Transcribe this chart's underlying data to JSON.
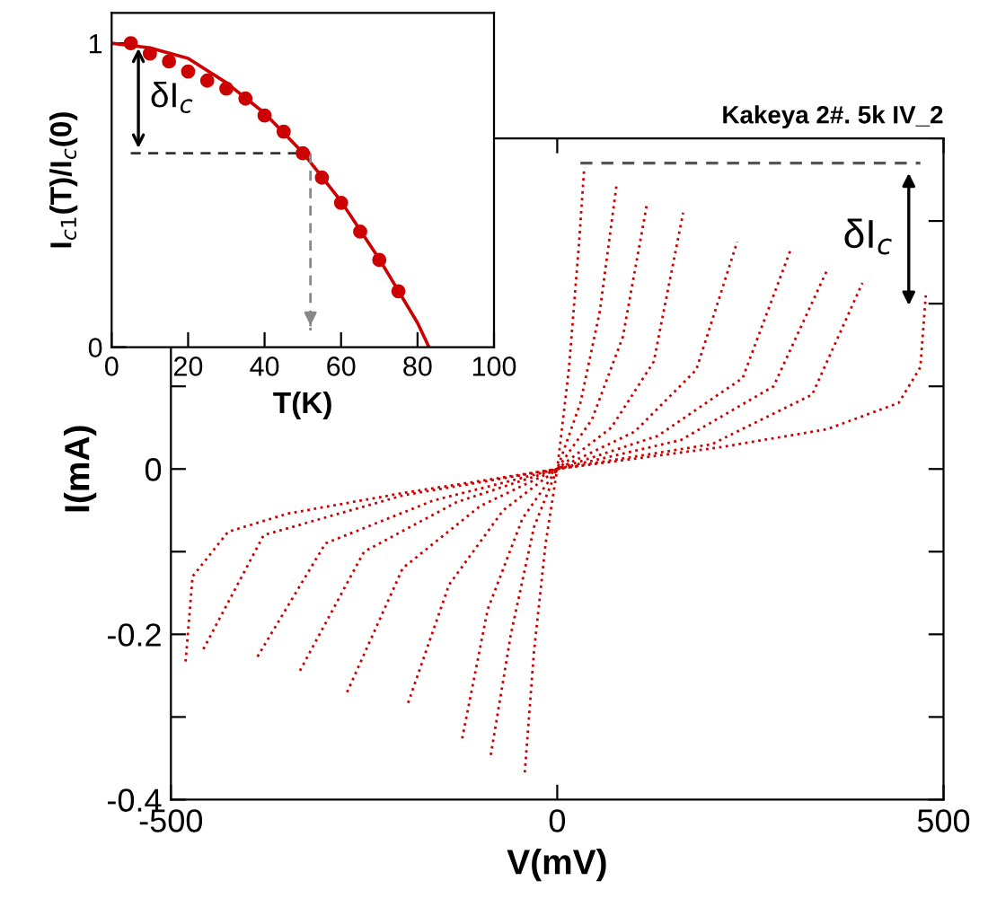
{
  "chart_data": [
    {
      "type": "scatter",
      "xlabel": "T(K)",
      "ylabel": "I$_{c1}$(T)/I$_{c}$(0)",
      "xlim": [
        0,
        100
      ],
      "xticks": [
        0,
        20,
        40,
        60,
        80,
        100
      ],
      "ylim": [
        0,
        1.1
      ],
      "yticks": [
        0,
        1
      ],
      "marker": "circle",
      "series": [
        {
          "type": "scatter",
          "color": "#cc0000",
          "x": [
            5,
            10,
            15,
            20,
            25,
            30,
            35,
            40,
            45,
            50,
            55,
            60,
            65,
            70,
            75
          ],
          "values": [
            1.0,
            0.966,
            0.94,
            0.907,
            0.877,
            0.851,
            0.818,
            0.762,
            0.709,
            0.638,
            0.558,
            0.475,
            0.38,
            0.287,
            0.184
          ]
        },
        {
          "type": "line",
          "color": "#cc0000",
          "line_style": "solid",
          "marker": "none",
          "x": [
            0,
            10,
            20,
            30,
            40,
            50,
            60,
            70,
            80,
            83
          ],
          "values": [
            1.0,
            0.985,
            0.95,
            0.87,
            0.77,
            0.64,
            0.48,
            0.29,
            0.08,
            0
          ]
        }
      ],
      "ref_lines": [
        {
          "axis": "y",
          "value": 0.638,
          "line_style": "dashed",
          "color": "#333333"
        },
        {
          "axis": "x",
          "value": 52,
          "line_style": "dashed",
          "color": "#888888"
        }
      ],
      "annotations": [
        {
          "text": "δI$_{c}$",
          "x": 7,
          "y": 0.638
        }
      ]
    },
    {
      "type": "line",
      "title": "Kakeya 2#. 5k IV_2",
      "xlabel": "V(mV)",
      "ylabel": "I(mA)",
      "xlim": [
        -500,
        500
      ],
      "xticks": [
        -500,
        0,
        500
      ],
      "ylim": [
        -0.4,
        0.4
      ],
      "yticks": [
        {
          "value": -0.4,
          "label": "-0.4"
        },
        {
          "value": -0.3,
          "label": null
        },
        {
          "value": -0.2,
          "label": "-0.2"
        },
        {
          "value": -0.1,
          "label": null
        },
        0,
        {
          "value": 0.1,
          "label": null
        },
        {
          "value": 0.2,
          "label": null
        },
        {
          "value": 0.3,
          "label": null
        },
        {
          "value": 0.4,
          "label": null
        }
      ],
      "line_style": "dotted",
      "marker": "none",
      "series": [
        {
          "color": "#cc0000",
          "x": [
            -42,
            -30,
            -15,
            0,
            15,
            28,
            35
          ],
          "values": [
            -0.367,
            -0.22,
            -0.09,
            0,
            0.12,
            0.27,
            0.365
          ]
        },
        {
          "color": "#cc0000",
          "x": [
            -86,
            -60,
            -30,
            0,
            30,
            55,
            77
          ],
          "values": [
            -0.346,
            -0.2,
            -0.07,
            0,
            0.08,
            0.19,
            0.345
          ]
        },
        {
          "color": "#cc0000",
          "x": [
            -123,
            -90,
            -45,
            0,
            45,
            85,
            116
          ],
          "values": [
            -0.326,
            -0.17,
            -0.06,
            0,
            0.06,
            0.16,
            0.32
          ]
        },
        {
          "color": "#cc0000",
          "x": [
            -193,
            -140,
            -70,
            0,
            70,
            125,
            163
          ],
          "values": [
            -0.283,
            -0.14,
            -0.05,
            0,
            0.05,
            0.13,
            0.31
          ]
        },
        {
          "color": "#cc0000",
          "x": [
            -272,
            -200,
            -100,
            0,
            100,
            180,
            233
          ],
          "values": [
            -0.27,
            -0.12,
            -0.045,
            0,
            0.045,
            0.12,
            0.275
          ]
        },
        {
          "color": "#cc0000",
          "x": [
            -333,
            -250,
            -130,
            0,
            130,
            240,
            302
          ],
          "values": [
            -0.244,
            -0.1,
            -0.04,
            0,
            0.04,
            0.11,
            0.265
          ]
        },
        {
          "color": "#cc0000",
          "x": [
            -388,
            -300,
            -160,
            0,
            160,
            280,
            349
          ],
          "values": [
            -0.227,
            -0.09,
            -0.038,
            0,
            0.035,
            0.1,
            0.24
          ]
        },
        {
          "color": "#cc0000",
          "x": [
            -458,
            -380,
            -200,
            0,
            200,
            330,
            395
          ],
          "values": [
            -0.218,
            -0.08,
            -0.032,
            0,
            0.03,
            0.09,
            0.225
          ]
        },
        {
          "color": "#cc0000",
          "x": [
            -481,
            -472,
            -426,
            -349,
            -193,
            0,
            209,
            349,
            442,
            470,
            477
          ],
          "values": [
            -0.233,
            -0.13,
            -0.076,
            -0.054,
            -0.028,
            0,
            0.026,
            0.048,
            0.08,
            0.123,
            0.21
          ]
        }
      ],
      "ref_lines": [
        {
          "axis": "y",
          "value": 0.37,
          "line_style": "dashed",
          "color": "#555555"
        }
      ],
      "annotations": [
        "δI$_{c}$"
      ]
    }
  ]
}
